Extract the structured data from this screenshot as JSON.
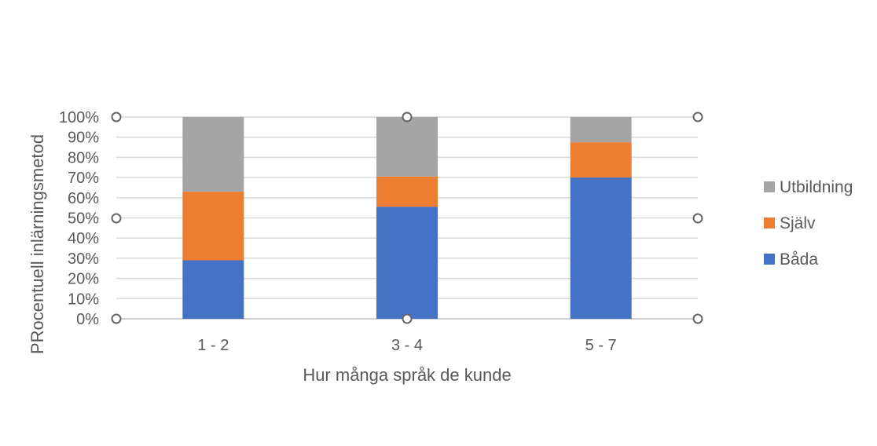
{
  "chart_data": {
    "type": "bar",
    "stacked": "percent",
    "title": "",
    "xlabel": "Hur många språk de kunde",
    "ylabel": "PRocentuell inlärningsmetod",
    "categories": [
      "1 - 2",
      "3 - 4",
      "5 - 7"
    ],
    "series": [
      {
        "name": "Båda",
        "values": [
          29,
          55.5,
          70
        ],
        "color": "#4472c4"
      },
      {
        "name": "Själv",
        "values": [
          34,
          15,
          17.5
        ],
        "color": "#ed7d31"
      },
      {
        "name": "Utbildning",
        "values": [
          37,
          29.5,
          12.5
        ],
        "color": "#a5a5a5"
      }
    ],
    "ylim": [
      0,
      100
    ],
    "yticks": [
      "0%",
      "10%",
      "20%",
      "30%",
      "40%",
      "50%",
      "60%",
      "70%",
      "80%",
      "90%",
      "100%"
    ],
    "grid": true,
    "legend": "right"
  }
}
